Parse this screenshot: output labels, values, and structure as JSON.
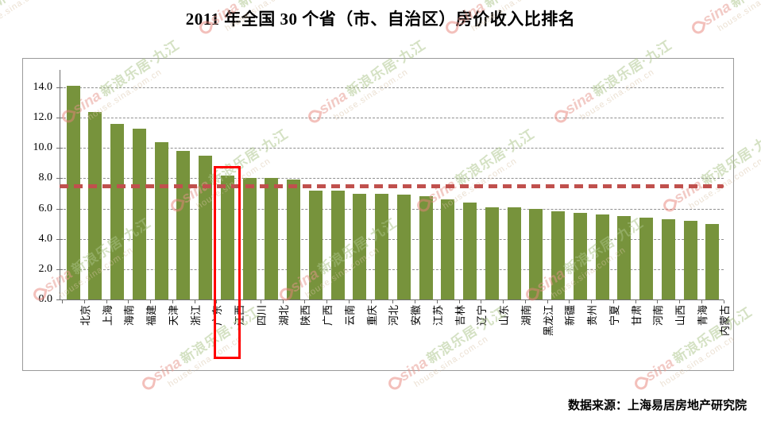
{
  "title": "2011 年全国 30 个省（市、自治区）房价收入比排名",
  "source": "数据来源：上海易居房地产研究院",
  "watermark": {
    "brand": "sina",
    "site": "新浪乐居·九江",
    "url": "house.sina.com.cn"
  },
  "chart_data": {
    "type": "bar",
    "title": "2011 年全国 30 个省（市、自治区）房价收入比排名",
    "categories": [
      "北京",
      "上海",
      "海南",
      "福建",
      "天津",
      "浙江",
      "广东",
      "江西",
      "四川",
      "湖北",
      "陕西",
      "广西",
      "云南",
      "重庆",
      "河北",
      "安徽",
      "江苏",
      "吉林",
      "辽宁",
      "山东",
      "湖南",
      "黑龙江",
      "新疆",
      "贵州",
      "宁夏",
      "甘肃",
      "河南",
      "山西",
      "青海",
      "内蒙古"
    ],
    "values": [
      14.1,
      12.4,
      11.6,
      11.3,
      10.4,
      9.8,
      9.5,
      8.2,
      8.0,
      8.0,
      7.9,
      7.2,
      7.2,
      7.0,
      7.0,
      6.9,
      6.8,
      6.6,
      6.4,
      6.1,
      6.1,
      6.0,
      5.8,
      5.7,
      5.6,
      5.5,
      5.4,
      5.3,
      5.2,
      5.0
    ],
    "xlabel": "",
    "ylabel": "",
    "ylim": [
      0,
      15
    ],
    "yticks": [
      0,
      2,
      4,
      6,
      8,
      10,
      12,
      14
    ],
    "ytick_labels": [
      "0.0",
      "2.0",
      "4.0",
      "6.0",
      "8.0",
      "10.0",
      "12.0",
      "14.0"
    ],
    "grid": true,
    "legend": false,
    "bar_color": "#77933c",
    "reference_line": {
      "value": 7.5,
      "color": "#c0504d",
      "style": "dashed"
    },
    "highlight": {
      "category": "江西",
      "box_color": "#ff0000"
    }
  }
}
